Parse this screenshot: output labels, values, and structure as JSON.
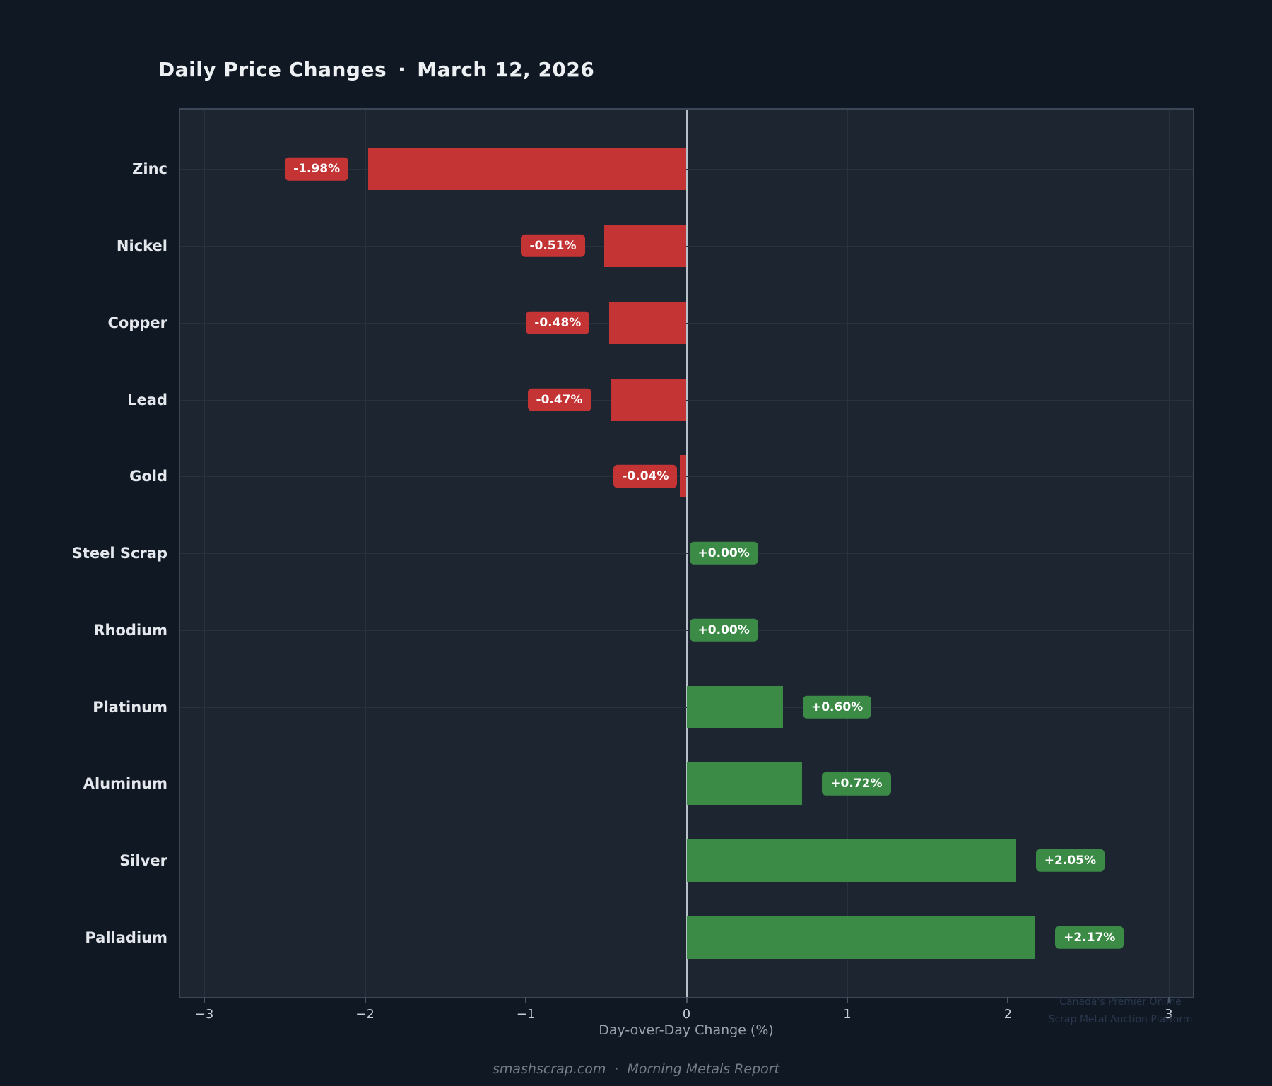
{
  "title": {
    "main": "Daily Price Changes",
    "separator": "·",
    "date": "March 12, 2026"
  },
  "chart_data": {
    "type": "bar",
    "orientation": "horizontal",
    "title": "Daily Price Changes · March 12, 2026",
    "categories": [
      "Zinc",
      "Nickel",
      "Copper",
      "Lead",
      "Gold",
      "Steel Scrap",
      "Rhodium",
      "Platinum",
      "Aluminum",
      "Silver",
      "Palladium"
    ],
    "values": [
      -1.98,
      -0.51,
      -0.48,
      -0.47,
      -0.04,
      0.0,
      0.0,
      0.6,
      0.72,
      2.05,
      2.17
    ],
    "value_labels": [
      "-1.98%",
      "-0.51%",
      "-0.48%",
      "-0.47%",
      "-0.04%",
      "+0.00%",
      "+0.00%",
      "+0.60%",
      "+0.72%",
      "+2.05%",
      "+2.17%"
    ],
    "xlabel": "Day-over-Day Change (%)",
    "ylabel": "",
    "xlim": [
      -3.15,
      3.15
    ],
    "x_tick_values": [
      -3,
      -2,
      -1,
      0,
      1,
      2,
      3
    ],
    "x_tick_labels": [
      "−3",
      "−2",
      "−1",
      "0",
      "1",
      "2",
      "3"
    ],
    "grid": true,
    "legend": "none",
    "colors": {
      "negative_bar": "#c43434",
      "positive_bar": "#3b8b46",
      "zero_line": "#b8c0c9",
      "plot_background": "#1d2531",
      "page_background": "#101823"
    }
  },
  "watermark": {
    "line1": "Canada's Premier Online",
    "line2": "Scrap Metal Auction Platform"
  },
  "footer": {
    "site": "smashscrap.com",
    "separator": "·",
    "report": "Morning Metals Report"
  }
}
